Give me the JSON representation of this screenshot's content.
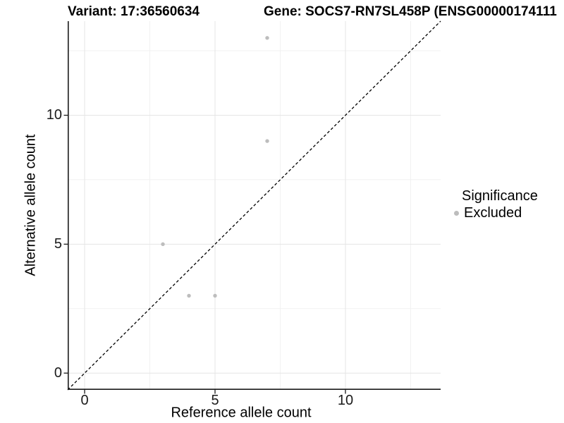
{
  "header": {
    "variant_title": "Variant: 17:36560634",
    "gene_title": "Gene: SOCS7-RN7SL458P (ENSG00000174111"
  },
  "legend": {
    "title": "Significance",
    "items": [
      {
        "label": "Excluded",
        "color": "#bdbdbd",
        "marker": "dot-icon"
      }
    ]
  },
  "chart_data": {
    "type": "scatter",
    "title_left": "Variant: 17:36560634",
    "title_right": "Gene: SOCS7-RN7SL458P (ENSG00000174111",
    "xlabel": "Reference allele count",
    "ylabel": "Alternative allele count",
    "xlim": [
      -0.65,
      13.65
    ],
    "ylim": [
      -0.65,
      13.65
    ],
    "x_ticks": [
      0,
      5,
      10
    ],
    "y_ticks": [
      0,
      5,
      10
    ],
    "x_minor_ticks": [
      2.5,
      7.5,
      12.5
    ],
    "y_minor_ticks": [
      2.5,
      7.5,
      12.5
    ],
    "grid": "major+minor",
    "legend_position": "right",
    "series": [
      {
        "name": "Excluded",
        "color": "#bdbdbd",
        "points": [
          {
            "x": 7,
            "y": 13
          },
          {
            "x": 7,
            "y": 9
          },
          {
            "x": 3,
            "y": 5
          },
          {
            "x": 4,
            "y": 3
          },
          {
            "x": 5,
            "y": 3
          }
        ]
      }
    ],
    "reference_line": {
      "type": "identity_y_equals_x",
      "style": "dashed",
      "color": "#000000"
    }
  },
  "colors": {
    "point": "#bdbdbd",
    "grid_major": "#e5e5e5",
    "grid_minor": "#f1f1f1",
    "axis_line": "#1a1a1a",
    "tick_mark": "#1a1a1a",
    "dashed_line": "#000000",
    "text": "#000000",
    "background": "#ffffff"
  }
}
